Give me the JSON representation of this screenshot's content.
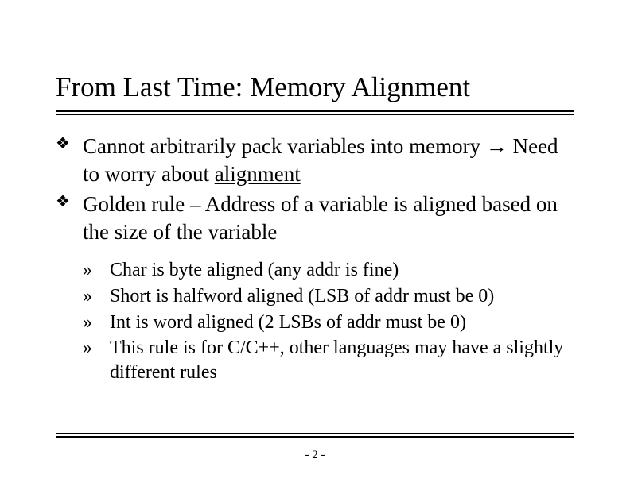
{
  "title": "From Last Time: Memory Alignment",
  "bullets": [
    {
      "pre": "Cannot arbitrarily pack variables into memory ",
      "arrow": "→",
      "post": " Need to worry about ",
      "underlined": "alignment"
    },
    {
      "text": "Golden rule – Address of a variable is aligned based on the size of the variable"
    }
  ],
  "subbullets": [
    "Char is byte aligned (any addr is fine)",
    "Short is halfword aligned (LSB of addr must be 0)",
    "Int is word aligned (2 LSBs of addr must be 0)",
    "This rule is for C/C++, other languages may have a slightly different rules"
  ],
  "page_number": "- 2 -",
  "glyphs": {
    "diamond": "❖",
    "raquo": "»"
  },
  "colors": {
    "text": "#000000",
    "background": "#ffffff",
    "rule": "#000000"
  },
  "fontsizes": {
    "title": 35,
    "body": 27,
    "sub": 24,
    "pagenum": 15
  }
}
